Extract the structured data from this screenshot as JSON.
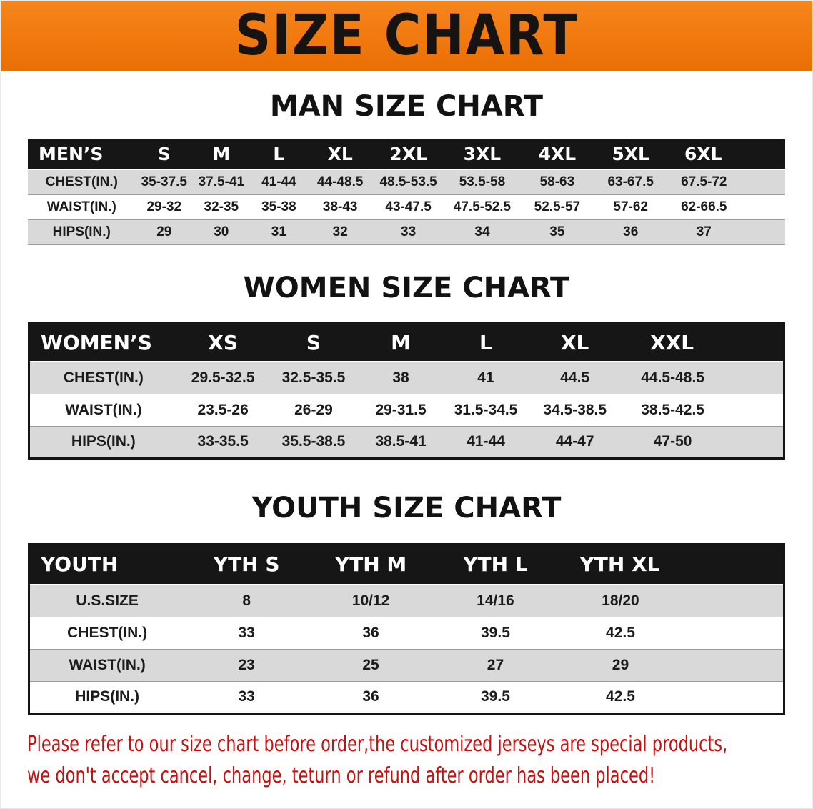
{
  "banner": {
    "title": "SIZE CHART"
  },
  "men": {
    "heading": "MAN SIZE CHART",
    "columns": [
      "MEN’S",
      "S",
      "M",
      "L",
      "XL",
      "2XL",
      "3XL",
      "4XL",
      "5XL",
      "6XL"
    ],
    "rows": [
      [
        "CHEST(IN.)",
        "35-37.5",
        "37.5-41",
        "41-44",
        "44-48.5",
        "48.5-53.5",
        "53.5-58",
        "58-63",
        "63-67.5",
        "67.5-72"
      ],
      [
        "WAIST(IN.)",
        "29-32",
        "32-35",
        "35-38",
        "38-43",
        "43-47.5",
        "47.5-52.5",
        "52.5-57",
        "57-62",
        "62-66.5"
      ],
      [
        "HIPS(IN.)",
        "29",
        "30",
        "31",
        "32",
        "33",
        "34",
        "35",
        "36",
        "37"
      ]
    ]
  },
  "women": {
    "heading": "WOMEN SIZE CHART",
    "columns": [
      "WOMEN’S",
      "XS",
      "S",
      "M",
      "L",
      "XL",
      "XXL"
    ],
    "rows": [
      [
        "CHEST(IN.)",
        "29.5-32.5",
        "32.5-35.5",
        "38",
        "41",
        "44.5",
        "44.5-48.5"
      ],
      [
        "WAIST(IN.)",
        "23.5-26",
        "26-29",
        "29-31.5",
        "31.5-34.5",
        "34.5-38.5",
        "38.5-42.5"
      ],
      [
        "HIPS(IN.)",
        "33-35.5",
        "35.5-38.5",
        "38.5-41",
        "41-44",
        "44-47",
        "47-50"
      ]
    ]
  },
  "youth": {
    "heading": "YOUTH SIZE CHART",
    "columns": [
      "YOUTH",
      "YTH S",
      "YTH M",
      "YTH L",
      "YTH XL"
    ],
    "rows": [
      [
        "U.S.SIZE",
        "8",
        "10/12",
        "14/16",
        "18/20"
      ],
      [
        "CHEST(IN.)",
        "33",
        "36",
        "39.5",
        "42.5"
      ],
      [
        "WAIST(IN.)",
        "23",
        "25",
        "27",
        "29"
      ],
      [
        "HIPS(IN.)",
        "33",
        "36",
        "39.5",
        "42.5"
      ]
    ]
  },
  "footer": {
    "line1": "Please refer to our size chart before order,the customized jerseys are special products,",
    "line2": "we don't accept cancel, change, teturn or refund after order has been placed!"
  },
  "colors": {
    "banner_bg": "#f1790e",
    "table_header_bg": "#161616",
    "table_header_text": "#ffffff",
    "row_alt_bg": "#d9d9d9",
    "footer_text": "#c61111",
    "title_text": "#171310"
  }
}
